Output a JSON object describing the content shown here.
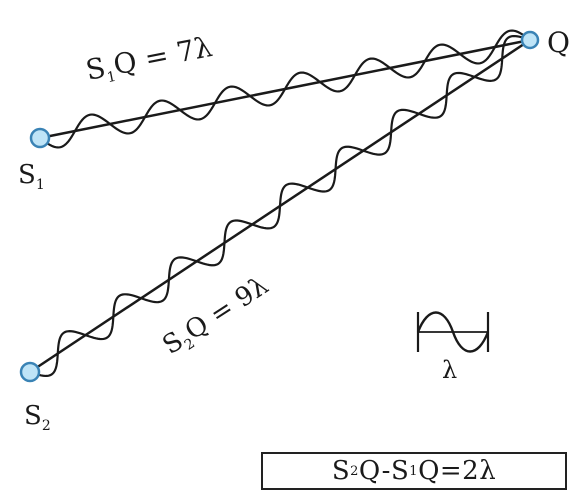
{
  "labels": {
    "source_1": {
      "main": "S",
      "sub": "1"
    },
    "source_2": {
      "main": "S",
      "sub": "2"
    },
    "point": "Q",
    "path_1": {
      "a": "S",
      "sub": "1",
      "b": "Q = 7λ"
    },
    "path_2": {
      "a": "S",
      "sub": "2",
      "b": "Q = 9λ"
    },
    "wavelength": "λ"
  },
  "result": {
    "t1": "S",
    "s1": "2",
    "t2": "Q-S",
    "s2": "1",
    "t3": "Q=2λ"
  },
  "waves": {
    "path_1_wavelengths": 7,
    "path_2_wavelengths": 9
  },
  "colors": {
    "source_fill": "#bfe4f7",
    "source_stroke": "#3a83b5",
    "line": "#1a1a1a"
  }
}
